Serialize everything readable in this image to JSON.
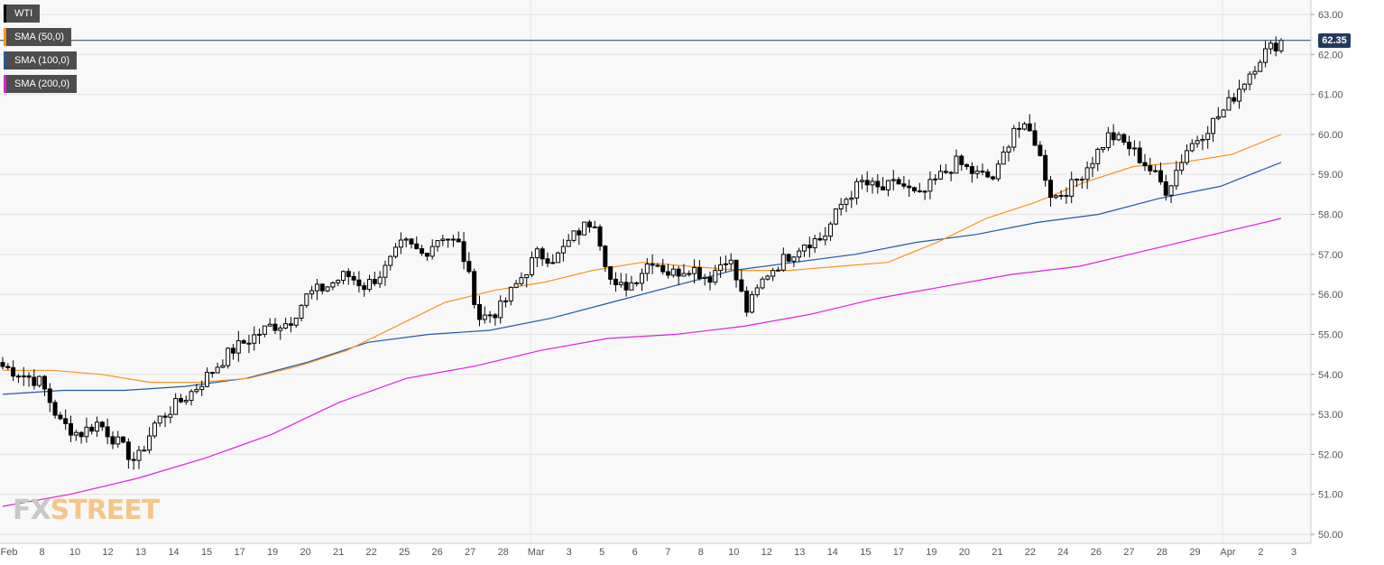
{
  "chart_data": {
    "type": "candlestick",
    "symbol": "WTI",
    "last_price": "62.35",
    "ylim": [
      50.0,
      63.0
    ],
    "y_ticks": [
      "63.00",
      "62.00",
      "61.00",
      "60.00",
      "59.00",
      "58.00",
      "57.00",
      "56.00",
      "55.00",
      "54.00",
      "53.00",
      "52.00",
      "51.00",
      "50.00"
    ],
    "x_ticks": [
      "Feb",
      "8",
      "10",
      "12",
      "13",
      "14",
      "15",
      "17",
      "19",
      "20",
      "21",
      "22",
      "25",
      "26",
      "27",
      "28",
      "Mar",
      "3",
      "5",
      "6",
      "7",
      "8",
      "10",
      "12",
      "13",
      "14",
      "15",
      "17",
      "19",
      "20",
      "21",
      "22",
      "24",
      "26",
      "27",
      "28",
      "29",
      "Apr",
      "2",
      "3"
    ],
    "grid": true,
    "legend": [
      {
        "label": "WTI",
        "color": "#000000"
      },
      {
        "label": "SMA (50,0)",
        "color": "#f7931e"
      },
      {
        "label": "SMA (100,0)",
        "color": "#1f5aa6"
      },
      {
        "label": "SMA (200,0)",
        "color": "#e020e0"
      }
    ],
    "close_anchors": [
      54.2,
      54.0,
      53.8,
      52.8,
      52.5,
      52.8,
      52.3,
      51.8,
      52.8,
      53.2,
      53.6,
      54.1,
      54.6,
      54.9,
      55.2,
      55.3,
      56.0,
      56.2,
      56.5,
      56.2,
      56.6,
      57.3,
      57.0,
      57.5,
      57.2,
      55.4,
      55.6,
      56.3,
      57.0,
      56.9,
      57.5,
      57.9,
      56.1,
      56.3,
      56.9,
      56.5,
      56.7,
      56.4,
      57.0,
      55.6,
      56.5,
      56.9,
      57.3,
      57.4,
      58.3,
      58.8,
      58.6,
      58.8,
      58.4,
      58.9,
      59.3,
      59.0,
      58.9,
      60.2,
      60.0,
      58.4,
      58.7,
      59.3,
      60.0,
      59.7,
      59.2,
      58.6,
      59.6,
      60.1,
      60.6,
      61.3,
      62.0,
      62.35
    ],
    "sma50": [
      54.1,
      54.1,
      54.0,
      53.8,
      53.8,
      53.9,
      54.2,
      54.6,
      55.2,
      55.8,
      56.1,
      56.3,
      56.6,
      56.8,
      56.7,
      56.6,
      56.6,
      56.7,
      56.8,
      57.3,
      57.9,
      58.3,
      58.8,
      59.2,
      59.3,
      59.5,
      60.0
    ],
    "sma100": [
      53.5,
      53.6,
      53.6,
      53.7,
      53.9,
      54.3,
      54.8,
      55.0,
      55.1,
      55.4,
      55.8,
      56.2,
      56.6,
      56.8,
      57.0,
      57.3,
      57.5,
      57.8,
      58.0,
      58.4,
      58.7,
      59.3
    ],
    "sma200": [
      50.7,
      51.0,
      51.4,
      51.9,
      52.5,
      53.3,
      53.9,
      54.2,
      54.6,
      54.9,
      55.0,
      55.2,
      55.5,
      55.9,
      56.2,
      56.5,
      56.7,
      57.1,
      57.5,
      57.9
    ]
  }
}
